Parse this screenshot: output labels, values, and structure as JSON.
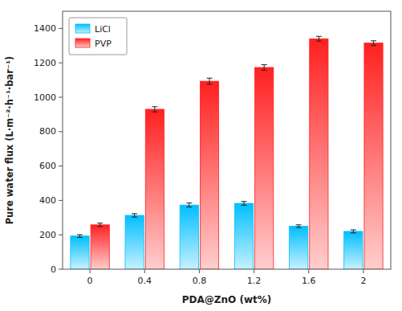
{
  "chart_data": {
    "type": "bar",
    "xlabel": "PDA@ZnO (wt%)",
    "ylabel": "Pure water flux (L·m⁻²·h⁻¹·bar⁻¹)",
    "categories": [
      "0",
      "0.4",
      "0.8",
      "1.2",
      "1.6",
      "2"
    ],
    "series": [
      {
        "name": "LiCl",
        "color": "#00BFFF",
        "values": [
          193,
          313,
          373,
          383,
          250,
          220
        ],
        "errors": [
          8,
          10,
          12,
          11,
          8,
          9
        ]
      },
      {
        "name": "PVP",
        "color": "#FF2020",
        "values": [
          258,
          930,
          1093,
          1173,
          1340,
          1315
        ],
        "errors": [
          10,
          15,
          18,
          16,
          14,
          13
        ]
      }
    ],
    "ylim": [
      0,
      1500
    ],
    "yticks": [
      0,
      200,
      400,
      600,
      800,
      1000,
      1200,
      1400
    ],
    "grid": false,
    "legend": "upper left"
  }
}
